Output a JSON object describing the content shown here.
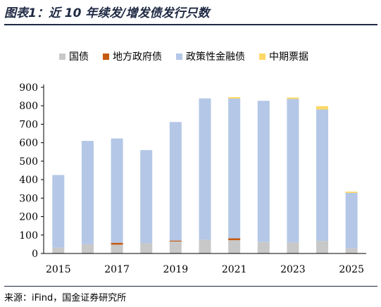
{
  "header": {
    "title": "图表1：近 10 年续发/增发债发行只数"
  },
  "footer": {
    "source": "来源：iFind，国金证券研究所"
  },
  "colors": {
    "series": [
      "#c8c8c8",
      "#c55a11",
      "#b4c7e7",
      "#ffd966"
    ],
    "axis": "#000000"
  },
  "chart_data": {
    "type": "bar",
    "stacked": true,
    "categories": [
      "2015",
      "2016",
      "2017",
      "2018",
      "2019",
      "2020",
      "2021",
      "2022",
      "2023",
      "2024",
      "2025"
    ],
    "x_tick_labels": [
      "2015",
      "",
      "2017",
      "",
      "2019",
      "",
      "2021",
      "",
      "2023",
      "",
      "2025"
    ],
    "series": [
      {
        "name": "国债",
        "values": [
          32,
          50,
          48,
          55,
          65,
          75,
          72,
          62,
          60,
          68,
          28
        ]
      },
      {
        "name": "地方政府债",
        "values": [
          0,
          0,
          10,
          0,
          5,
          0,
          10,
          0,
          0,
          0,
          0
        ]
      },
      {
        "name": "政策性金融债",
        "values": [
          393,
          560,
          565,
          505,
          642,
          765,
          757,
          765,
          777,
          712,
          300
        ]
      },
      {
        "name": "中期票据",
        "values": [
          0,
          0,
          0,
          0,
          0,
          0,
          8,
          0,
          8,
          18,
          7
        ]
      }
    ],
    "ylim": [
      0,
      900
    ],
    "yticks": [
      0,
      100,
      200,
      300,
      400,
      500,
      600,
      700,
      800,
      900
    ],
    "legend_position": "top"
  }
}
